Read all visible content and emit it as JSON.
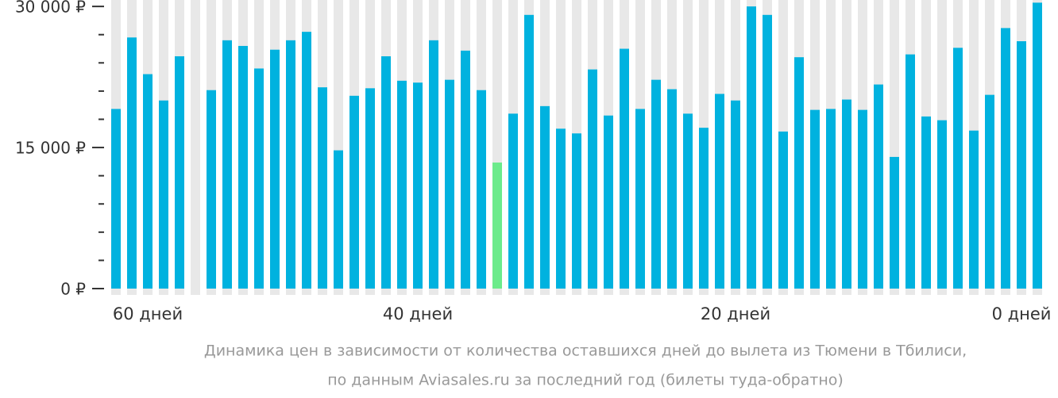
{
  "chart_data": {
    "type": "bar",
    "caption": [
      "Динамика цен в зависимости от количества оставшихся дней до вылета из Тюмени в Тбилиси,",
      "по данным Aviasales.ru за последний год (билеты туда-обратно)"
    ],
    "categories": [
      null,
      null,
      "60 дней",
      null,
      null,
      null,
      null,
      null,
      null,
      null,
      null,
      null,
      null,
      null,
      null,
      null,
      null,
      null,
      null,
      "40 дней",
      null,
      null,
      null,
      null,
      null,
      null,
      null,
      null,
      null,
      null,
      null,
      null,
      null,
      null,
      null,
      null,
      null,
      null,
      null,
      "20 дней",
      null,
      null,
      null,
      null,
      null,
      null,
      null,
      null,
      null,
      null,
      null,
      null,
      null,
      null,
      null,
      null,
      null,
      "0 дней",
      null
    ],
    "values": [
      19100,
      26700,
      22800,
      20000,
      24700,
      null,
      21100,
      26400,
      25800,
      23400,
      25400,
      26400,
      27300,
      21400,
      14700,
      20500,
      21300,
      24700,
      22100,
      21900,
      26400,
      22200,
      25300,
      21100,
      13400,
      18600,
      29100,
      19400,
      17000,
      16500,
      23300,
      18400,
      25500,
      19100,
      22200,
      21200,
      18600,
      17100,
      20700,
      20000,
      30000,
      29100,
      16700,
      24600,
      19000,
      19100,
      20100,
      19000,
      21700,
      14000,
      24900,
      18300,
      17900,
      25600,
      16800,
      20600,
      27700,
      26300,
      30400
    ],
    "colors": [
      "#00b2df",
      "#00b2df",
      "#00b2df",
      "#00b2df",
      "#00b2df",
      "#00b2df",
      "#00b2df",
      "#00b2df",
      "#00b2df",
      "#00b2df",
      "#00b2df",
      "#00b2df",
      "#00b2df",
      "#00b2df",
      "#00b2df",
      "#00b2df",
      "#00b2df",
      "#00b2df",
      "#00b2df",
      "#00b2df",
      "#00b2df",
      "#00b2df",
      "#00b2df",
      "#00b2df",
      "#6ceb8b",
      "#00b2df",
      "#00b2df",
      "#00b2df",
      "#00b2df",
      "#00b2df",
      "#00b2df",
      "#00b2df",
      "#00b2df",
      "#00b2df",
      "#00b2df",
      "#00b2df",
      "#00b2df",
      "#00b2df",
      "#00b2df",
      "#00b2df",
      "#00b2df",
      "#00b2df",
      "#00b2df",
      "#00b2df",
      "#00b2df",
      "#00b2df",
      "#00b2df",
      "#00b2df",
      "#00b2df",
      "#00b2df",
      "#00b2df",
      "#00b2df",
      "#00b2df",
      "#00b2df",
      "#00b2df",
      "#00b2df",
      "#00b2df",
      "#00b2df",
      "#00b2df"
    ],
    "ylim": [
      0,
      30600
    ],
    "yticks": [
      {
        "value": 0,
        "label": "0 ₽"
      },
      {
        "value": 15000,
        "label": "15 000 ₽"
      },
      {
        "value": 30000,
        "label": "30 000 ₽"
      }
    ],
    "minor_yticks": [
      3000,
      6000,
      9000,
      12000,
      18000,
      21000,
      24000,
      27000
    ]
  }
}
